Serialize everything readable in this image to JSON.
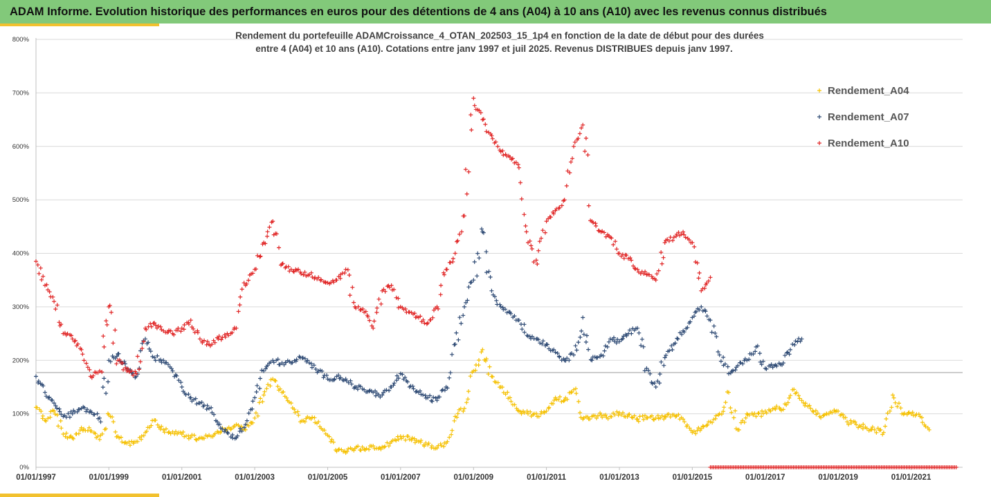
{
  "header": {
    "title": "ADAM Informe. Evolution historique des performances en euros pour des détentions de 4 ans (A04) à 10 ans (A10) avec les revenus connus distribués"
  },
  "chart_data": {
    "type": "scatter",
    "subtitle_lines": [
      "Rendement du portefeuille ADAMCroissance_4_OTAN_202503_15_1p4  en fonction de la date de début pour des durées",
      "entre 4 (A04) et 10 ans (A10). Cotations entre janv 1997 et juil 2025. Revenus DISTRIBUES depuis janv 1997."
    ],
    "xlabel": "",
    "ylabel": "",
    "x_range": [
      "1997-01-01",
      "2022-06-01"
    ],
    "y_range": [
      0,
      800
    ],
    "y_ticks": [
      "0%",
      "100%",
      "200%",
      "300%",
      "400%",
      "500%",
      "600%",
      "700%",
      "800%"
    ],
    "x_ticks": [
      "01/01/1997",
      "01/01/1999",
      "01/01/2001",
      "01/01/2003",
      "01/01/2005",
      "01/01/2007",
      "01/01/2009",
      "01/01/2011",
      "01/01/2013",
      "01/01/2015",
      "01/01/2017",
      "01/01/2019",
      "01/01/2021"
    ],
    "grid": "horizontal",
    "reference_line": 177,
    "legend": "right",
    "marker": "+",
    "series": [
      {
        "name": "Rendement_A04",
        "color": "#f5c000",
        "x": [
          "1997-01-01",
          "1997-04-01",
          "1997-07-01",
          "1997-10-01",
          "1998-01-01",
          "1998-04-01",
          "1998-07-01",
          "1998-10-01",
          "1999-01-01",
          "1999-04-01",
          "1999-07-01",
          "1999-10-01",
          "2000-01-01",
          "2000-04-01",
          "2000-07-01",
          "2000-10-01",
          "2001-01-01",
          "2001-04-01",
          "2001-07-01",
          "2001-10-01",
          "2002-01-01",
          "2002-04-01",
          "2002-07-01",
          "2002-10-01",
          "2003-01-01",
          "2003-04-01",
          "2003-07-01",
          "2003-10-01",
          "2004-01-01",
          "2004-04-01",
          "2004-07-01",
          "2004-10-01",
          "2005-01-01",
          "2005-04-01",
          "2005-07-01",
          "2005-10-01",
          "2006-01-01",
          "2006-04-01",
          "2006-07-01",
          "2006-10-01",
          "2007-01-01",
          "2007-04-01",
          "2007-07-01",
          "2007-10-01",
          "2008-01-01",
          "2008-04-01",
          "2008-07-01",
          "2008-10-01",
          "2009-01-01",
          "2009-04-01",
          "2009-07-01",
          "2009-10-01",
          "2010-01-01",
          "2010-04-01",
          "2010-07-01",
          "2010-10-01",
          "2011-01-01",
          "2011-04-01",
          "2011-07-01",
          "2011-10-01",
          "2012-01-01",
          "2012-04-01",
          "2012-07-01",
          "2012-10-01",
          "2013-01-01",
          "2013-04-01",
          "2013-07-01",
          "2013-10-01",
          "2014-01-01",
          "2014-04-01",
          "2014-07-01",
          "2014-10-01",
          "2015-01-01",
          "2015-04-01",
          "2015-07-01",
          "2015-10-01",
          "2016-01-01",
          "2016-04-01",
          "2016-07-01",
          "2016-10-01",
          "2017-01-01",
          "2017-04-01",
          "2017-07-01",
          "2017-10-01",
          "2018-01-01",
          "2018-04-01",
          "2018-07-01",
          "2018-10-01",
          "2019-01-01",
          "2019-04-01",
          "2019-07-01",
          "2019-10-01",
          "2020-01-01",
          "2020-04-01",
          "2020-07-01",
          "2020-10-01",
          "2021-01-01",
          "2021-04-01",
          "2021-07-01"
        ],
        "y": [
          112,
          88,
          105,
          62,
          55,
          74,
          68,
          52,
          98,
          58,
          45,
          48,
          65,
          88,
          70,
          66,
          62,
          56,
          55,
          60,
          65,
          72,
          80,
          70,
          92,
          135,
          165,
          140,
          120,
          85,
          92,
          85,
          60,
          30,
          27,
          35,
          34,
          40,
          38,
          48,
          58,
          52,
          48,
          42,
          36,
          45,
          95,
          110,
          180,
          220,
          170,
          150,
          130,
          105,
          100,
          95,
          105,
          130,
          125,
          145,
          90,
          95,
          98,
          95,
          102,
          98,
          90,
          92,
          92,
          95,
          98,
          90,
          65,
          72,
          85,
          100,
          140,
          70,
          100,
          95,
          105,
          110,
          108,
          145,
          125,
          110,
          95,
          100,
          105,
          85,
          80,
          75,
          70,
          65,
          135,
          100,
          100,
          95,
          70
        ]
      },
      {
        "name": "Rendement_A07",
        "color": "#2e4a74",
        "x": [
          "1997-01-01",
          "1997-04-01",
          "1997-07-01",
          "1997-10-01",
          "1998-01-01",
          "1998-04-01",
          "1998-07-01",
          "1998-10-01",
          "1999-01-01",
          "1999-04-01",
          "1999-07-01",
          "1999-10-01",
          "2000-01-01",
          "2000-04-01",
          "2000-07-01",
          "2000-10-01",
          "2001-01-01",
          "2001-04-01",
          "2001-07-01",
          "2001-10-01",
          "2002-01-01",
          "2002-04-01",
          "2002-07-01",
          "2002-10-01",
          "2003-01-01",
          "2003-04-01",
          "2003-07-01",
          "2003-10-01",
          "2004-01-01",
          "2004-04-01",
          "2004-07-01",
          "2004-10-01",
          "2005-01-01",
          "2005-04-01",
          "2005-07-01",
          "2005-10-01",
          "2006-01-01",
          "2006-04-01",
          "2006-07-01",
          "2006-10-01",
          "2007-01-01",
          "2007-04-01",
          "2007-07-01",
          "2007-10-01",
          "2008-01-01",
          "2008-04-01",
          "2008-07-01",
          "2008-10-01",
          "2009-01-01",
          "2009-04-01",
          "2009-07-01",
          "2009-10-01",
          "2010-01-01",
          "2010-04-01",
          "2010-07-01",
          "2010-10-01",
          "2011-01-01",
          "2011-04-01",
          "2011-07-01",
          "2011-10-01",
          "2012-01-01",
          "2012-04-01",
          "2012-07-01",
          "2012-10-01",
          "2013-01-01",
          "2013-04-01",
          "2013-07-01",
          "2013-10-01",
          "2014-01-01",
          "2014-04-01",
          "2014-07-01",
          "2014-10-01",
          "2015-01-01",
          "2015-04-01",
          "2015-07-01",
          "2015-10-01",
          "2016-01-01",
          "2016-04-01",
          "2016-07-01",
          "2016-10-01",
          "2017-01-01",
          "2017-04-01",
          "2017-07-01",
          "2017-10-01",
          "2018-01-01"
        ],
        "y": [
          170,
          140,
          120,
          95,
          100,
          110,
          105,
          92,
          200,
          212,
          185,
          170,
          240,
          205,
          200,
          180,
          150,
          130,
          120,
          110,
          80,
          65,
          55,
          80,
          130,
          180,
          200,
          195,
          195,
          205,
          195,
          180,
          165,
          170,
          165,
          150,
          145,
          140,
          135,
          150,
          175,
          150,
          140,
          130,
          125,
          150,
          230,
          300,
          350,
          440,
          330,
          300,
          290,
          275,
          245,
          240,
          230,
          215,
          200,
          210,
          280,
          200,
          210,
          240,
          235,
          250,
          260,
          185,
          150,
          205,
          230,
          255,
          280,
          300,
          275,
          210,
          175,
          190,
          200,
          225,
          185,
          190,
          195,
          230,
          240
        ]
      },
      {
        "name": "Rendement_A10",
        "color": "#e02424",
        "x": [
          "1997-01-01",
          "1997-04-01",
          "1997-07-01",
          "1997-10-01",
          "1998-01-01",
          "1998-04-01",
          "1998-07-01",
          "1998-10-01",
          "1999-01-01",
          "1999-04-01",
          "1999-07-01",
          "1999-10-01",
          "2000-01-01",
          "2000-04-01",
          "2000-07-01",
          "2000-10-01",
          "2001-01-01",
          "2001-04-01",
          "2001-07-01",
          "2001-10-01",
          "2002-01-01",
          "2002-04-01",
          "2002-07-01",
          "2002-10-01",
          "2003-01-01",
          "2003-04-01",
          "2003-07-01",
          "2003-10-01",
          "2004-01-01",
          "2004-04-01",
          "2004-07-01",
          "2004-10-01",
          "2005-01-01",
          "2005-04-01",
          "2005-07-01",
          "2005-10-01",
          "2006-01-01",
          "2006-04-01",
          "2006-07-01",
          "2006-10-01",
          "2007-01-01",
          "2007-04-01",
          "2007-07-01",
          "2007-10-01",
          "2008-01-01",
          "2008-04-01",
          "2008-07-01",
          "2008-10-01",
          "2009-01-01",
          "2009-04-01",
          "2009-07-01",
          "2009-10-01",
          "2010-01-01",
          "2010-04-01",
          "2010-07-01",
          "2010-10-01",
          "2011-01-01",
          "2011-04-01",
          "2011-07-01",
          "2011-10-01",
          "2012-01-01",
          "2012-04-01",
          "2012-07-01",
          "2012-10-01",
          "2013-01-01",
          "2013-04-01",
          "2013-07-01",
          "2013-10-01",
          "2014-01-01",
          "2014-04-01",
          "2014-07-01",
          "2014-10-01",
          "2015-01-01",
          "2015-04-01",
          "2015-07-01"
        ],
        "y": [
          385,
          340,
          310,
          250,
          240,
          220,
          170,
          180,
          300,
          200,
          180,
          175,
          260,
          270,
          255,
          250,
          260,
          275,
          240,
          230,
          240,
          250,
          260,
          340,
          370,
          420,
          460,
          380,
          370,
          365,
          360,
          355,
          345,
          350,
          370,
          300,
          290,
          260,
          330,
          340,
          300,
          290,
          280,
          270,
          300,
          370,
          400,
          470,
          690,
          650,
          620,
          590,
          580,
          560,
          420,
          380,
          460,
          480,
          500,
          600,
          640,
          460,
          440,
          430,
          400,
          390,
          370,
          360,
          350,
          420,
          430,
          440,
          420,
          330,
          355
        ]
      },
      {
        "name": "",
        "color": "#e02424",
        "x_range": [
          "2015-07-01",
          "2022-04-01"
        ],
        "y_constant": 0
      }
    ]
  }
}
